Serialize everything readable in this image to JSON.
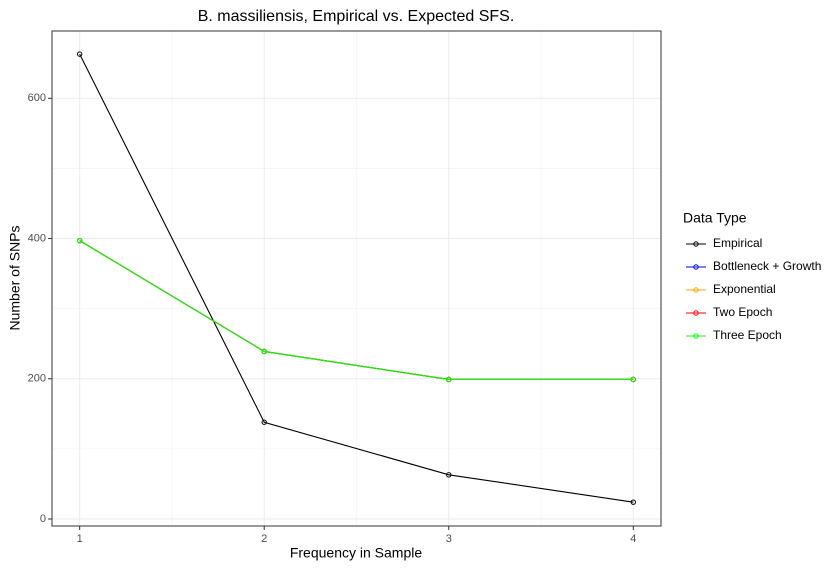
{
  "chart_data": {
    "type": "line",
    "title": "B. massiliensis, Empirical vs. Expected SFS.",
    "xlabel": "Frequency in Sample",
    "ylabel": "Number of SNPs",
    "legend_title": "Data Type",
    "legend_position": "right",
    "grid": true,
    "x": [
      1,
      2,
      3,
      4
    ],
    "xlim": [
      0.85,
      4.15
    ],
    "xticks": [
      1,
      2,
      3,
      4
    ],
    "ylim": [
      -10,
      696
    ],
    "yticks": [
      0,
      200,
      400,
      600
    ],
    "series": [
      {
        "name": "Empirical",
        "color": "#000000",
        "values": [
          663,
          138,
          63,
          24
        ]
      },
      {
        "name": "Bottleneck + Growth",
        "color": "#0000ff",
        "values": [
          397,
          239,
          199,
          199
        ]
      },
      {
        "name": "Exponential",
        "color": "#ffa500",
        "values": [
          397,
          239,
          199,
          199
        ]
      },
      {
        "name": "Two Epoch",
        "color": "#ff0000",
        "values": [
          397,
          239,
          199,
          199
        ]
      },
      {
        "name": "Three Epoch",
        "color": "#00ff00",
        "values": [
          397,
          239,
          199,
          199
        ]
      }
    ]
  }
}
